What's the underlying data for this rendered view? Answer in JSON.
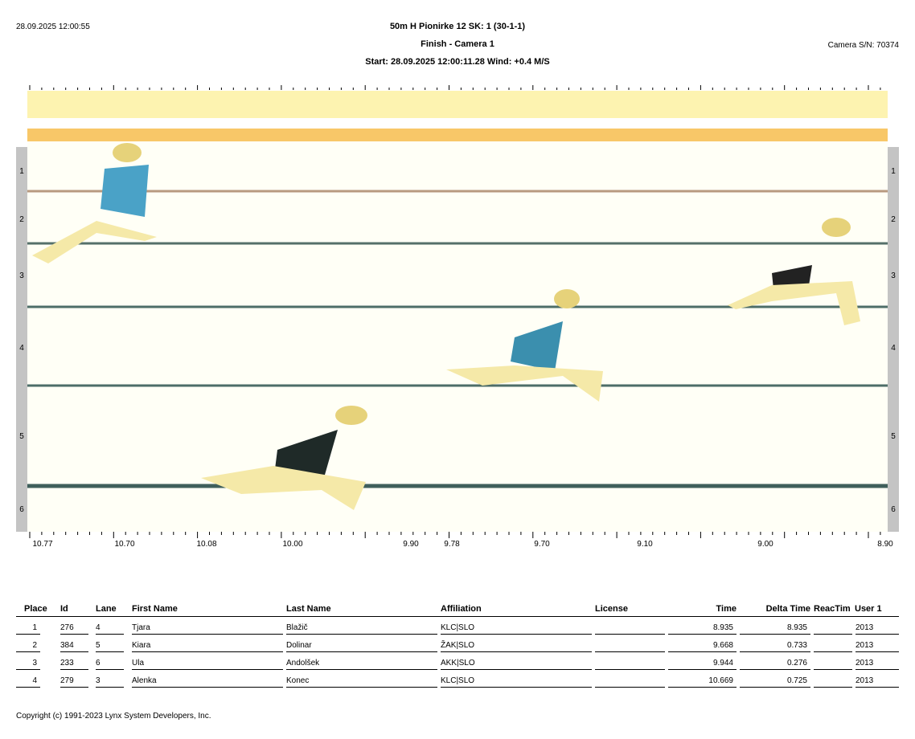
{
  "header": {
    "printed_at": "28.09.2025 12:00:55",
    "event_title": "50m H Pionirke 12   SK: 1 (30-1-1)",
    "camera": "Finish - Camera 1",
    "start_wind": "Start: 28.09.2025 12:00:11.28    Wind: +0.4 M/S",
    "camera_sn": "Camera S/N: 70374"
  },
  "lanes": [
    "1",
    "2",
    "3",
    "4",
    "5",
    "6"
  ],
  "time_axis": [
    "10.77",
    "10.70",
    "10.08",
    "10.00",
    "9.90",
    "9.78",
    "9.70",
    "9.10",
    "9.00",
    "8.90"
  ],
  "results": {
    "columns": [
      "Place",
      "Id",
      "Lane",
      "First Name",
      "Last Name",
      "Affiliation",
      "License",
      "Time",
      "Delta Time",
      "ReacTim",
      "User 1"
    ],
    "rows": [
      {
        "place": "1",
        "id": "276",
        "lane": "4",
        "first": "Tjara",
        "last": "Blažič",
        "affiliation": "KLC|SLO",
        "license": "",
        "time": "8.935",
        "delta": "8.935",
        "reac": "",
        "user1": "2013"
      },
      {
        "place": "2",
        "id": "384",
        "lane": "5",
        "first": "Kiara",
        "last": "Dolinar",
        "affiliation": "ŽAK|SLO",
        "license": "",
        "time": "9.668",
        "delta": "0.733",
        "reac": "",
        "user1": "2013"
      },
      {
        "place": "3",
        "id": "233",
        "lane": "6",
        "first": "Ula",
        "last": "Andolšek",
        "affiliation": "AKK|SLO",
        "license": "",
        "time": "9.944",
        "delta": "0.276",
        "reac": "",
        "user1": "2013"
      },
      {
        "place": "4",
        "id": "279",
        "lane": "3",
        "first": "Alenka",
        "last": "Konec",
        "affiliation": "KLC|SLO",
        "license": "",
        "time": "10.669",
        "delta": "0.725",
        "reac": "",
        "user1": "2013"
      }
    ]
  },
  "footer": {
    "copyright": "Copyright (c) 1991-2023 Lynx System Developers, Inc."
  }
}
